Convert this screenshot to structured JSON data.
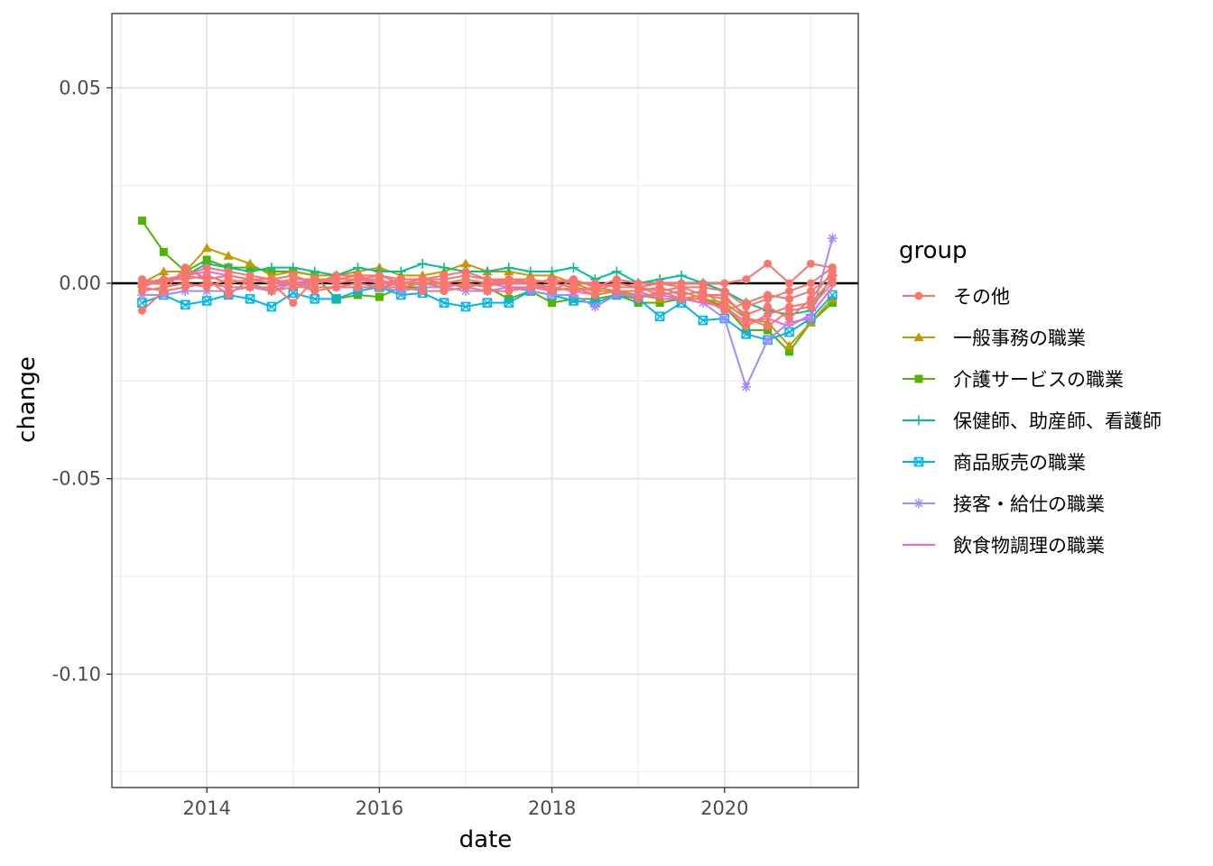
{
  "chart_data": {
    "type": "line",
    "xlabel": "date",
    "ylabel": "change",
    "xlim": [
      2012.9,
      2021.55
    ],
    "ylim": [
      -0.129,
      0.069
    ],
    "x_ticks": [
      {
        "value": 2014,
        "label": "2014"
      },
      {
        "value": 2016,
        "label": "2016"
      },
      {
        "value": 2018,
        "label": "2018"
      },
      {
        "value": 2020,
        "label": "2020"
      }
    ],
    "y_ticks": [
      {
        "value": 0.05,
        "label": "0.05"
      },
      {
        "value": 0.0,
        "label": "0.00"
      },
      {
        "value": -0.05,
        "label": "-0.05"
      },
      {
        "value": -0.1,
        "label": "-0.10"
      }
    ],
    "reference_line_y": 0,
    "grid": true,
    "legend": {
      "title": "group",
      "position": "right",
      "entries": [
        {
          "name": "その他",
          "color": "#F8766D",
          "shape": "circle"
        },
        {
          "name": "一般事務の職業",
          "color": "#C49A00",
          "shape": "triangle"
        },
        {
          "name": "介護サービスの職業",
          "color": "#53B400",
          "shape": "square"
        },
        {
          "name": "保健師、助産師、看護師",
          "color": "#00C094",
          "shape": "plus"
        },
        {
          "name": "商品販売の職業",
          "color": "#00B6EB",
          "shape": "boxcross"
        },
        {
          "name": "接客・給仕の職業",
          "color": "#A58AFF",
          "shape": "asterisk"
        },
        {
          "name": "飲食物調理の職業",
          "color": "#FB61D7",
          "shape": "none"
        }
      ]
    },
    "x": [
      2013.25,
      2013.5,
      2013.75,
      2014.0,
      2014.25,
      2014.5,
      2014.75,
      2015.0,
      2015.25,
      2015.5,
      2015.75,
      2016.0,
      2016.25,
      2016.5,
      2016.75,
      2017.0,
      2017.25,
      2017.5,
      2017.75,
      2018.0,
      2018.25,
      2018.5,
      2018.75,
      2019.0,
      2019.25,
      2019.5,
      2019.75,
      2020.0,
      2020.25,
      2020.5,
      2020.75,
      2021.0,
      2021.25
    ],
    "series": [
      {
        "name": "介護サービスの職業",
        "color": "#53B400",
        "shape": "square",
        "values": [
          0.016,
          0.008,
          0.003,
          0.006,
          0.004,
          0.004,
          0.003,
          0.003,
          0.002,
          -0.004,
          -0.003,
          -0.0035,
          -0.001,
          -0.001,
          -0.001,
          0.0,
          -0.001,
          -0.004,
          -0.002,
          -0.005,
          -0.004,
          -0.004,
          -0.003,
          -0.005,
          -0.005,
          -0.004,
          -0.004,
          -0.006,
          -0.012,
          -0.012,
          -0.0175,
          -0.01,
          -0.005
        ]
      },
      {
        "name": "一般事務の職業",
        "color": "#C49A00",
        "shape": "triangle",
        "values": [
          0.0,
          0.003,
          0.003,
          0.009,
          0.007,
          0.005,
          0.002,
          0.003,
          0.002,
          0.002,
          0.003,
          0.004,
          0.002,
          0.002,
          0.003,
          0.005,
          0.003,
          0.003,
          0.002,
          0.002,
          0.0,
          -0.002,
          -0.002,
          -0.003,
          -0.004,
          -0.004,
          -0.004,
          -0.005,
          -0.009,
          -0.01,
          -0.016,
          -0.01,
          -0.004
        ]
      },
      {
        "name": "保健師、助産師、看護師",
        "color": "#00C094",
        "shape": "plus",
        "values": [
          0.0,
          0.001,
          0.002,
          0.005,
          0.004,
          0.003,
          0.004,
          0.004,
          0.003,
          0.002,
          0.004,
          0.003,
          0.003,
          0.005,
          0.004,
          0.003,
          0.003,
          0.004,
          0.003,
          0.003,
          0.004,
          0.001,
          0.003,
          0.0,
          0.001,
          0.002,
          0.0,
          -0.002,
          -0.005,
          -0.007,
          -0.008,
          -0.007,
          0.002
        ]
      },
      {
        "name": "商品販売の職業",
        "color": "#00B6EB",
        "shape": "boxcross",
        "values": [
          -0.005,
          -0.003,
          -0.0055,
          -0.0045,
          -0.003,
          -0.004,
          -0.006,
          -0.0025,
          -0.004,
          -0.004,
          -0.002,
          -0.001,
          -0.003,
          -0.0025,
          -0.005,
          -0.006,
          -0.005,
          -0.005,
          -0.002,
          -0.003,
          -0.0045,
          -0.005,
          -0.003,
          -0.004,
          -0.0085,
          -0.005,
          -0.0095,
          -0.009,
          -0.013,
          -0.0145,
          -0.0125,
          -0.009,
          -0.003
        ]
      },
      {
        "name": "接客・給仕の職業",
        "color": "#A58AFF",
        "shape": "asterisk",
        "values": [
          -0.003,
          -0.003,
          -0.002,
          -0.002,
          -0.002,
          -0.001,
          -0.002,
          0.0,
          -0.001,
          -0.001,
          -0.001,
          -0.001,
          -0.002,
          -0.001,
          -0.001,
          -0.002,
          -0.002,
          -0.001,
          -0.002,
          -0.003,
          -0.003,
          -0.006,
          -0.003,
          -0.003,
          -0.003,
          -0.004,
          -0.005,
          -0.009,
          -0.0265,
          -0.0145,
          -0.01,
          -0.009,
          0.0115
        ]
      },
      {
        "name": "飲食物調理の職業",
        "color": "#FB61D7",
        "shape": "none",
        "values": [
          -0.001,
          0.001,
          0.002,
          0.003,
          0.002,
          0.001,
          0.0,
          0.0,
          0.001,
          0.0,
          0.001,
          0.0,
          0.0,
          0.0,
          0.0,
          -0.001,
          0.0,
          -0.001,
          -0.001,
          -0.001,
          -0.002,
          -0.003,
          -0.002,
          -0.002,
          -0.004,
          -0.004,
          -0.005,
          -0.006,
          -0.01,
          -0.009,
          -0.011,
          -0.008,
          -0.001
        ]
      },
      {
        "name": "その他",
        "color": "#F8766D",
        "shape": "circle",
        "values": [
          -0.007,
          -0.002,
          0.004,
          0.001,
          -0.003,
          0.001,
          0.0,
          -0.005,
          0.001,
          0.0,
          0.001,
          0.001,
          -0.001,
          0.0,
          -0.001,
          0.0,
          -0.001,
          0.001,
          0.0,
          -0.002,
          0.001,
          -0.001,
          0.001,
          0.0,
          0.0,
          0.0,
          0.0,
          0.0,
          0.001,
          0.005,
          0.0,
          0.005,
          0.004
        ]
      },
      {
        "name": "その他",
        "color": "#F8766D",
        "shape": "circle",
        "values": [
          0.001,
          0.0,
          0.002,
          0.004,
          0.003,
          0.002,
          0.001,
          0.002,
          0.0,
          0.002,
          0.002,
          0.002,
          0.001,
          0.001,
          0.002,
          0.003,
          0.001,
          0.0,
          0.001,
          0.0,
          -0.001,
          -0.002,
          0.0,
          -0.001,
          -0.002,
          -0.001,
          -0.003,
          -0.004,
          -0.008,
          -0.006,
          -0.009,
          -0.004,
          0.003
        ]
      },
      {
        "name": "その他",
        "color": "#F8766D",
        "shape": "circle",
        "values": [
          -0.002,
          -0.001,
          0.0,
          -0.001,
          0.001,
          0.0,
          -0.002,
          -0.001,
          -0.001,
          -0.001,
          0.0,
          -0.001,
          0.0,
          0.0,
          0.0,
          -0.001,
          0.0,
          0.0,
          0.0,
          -0.001,
          -0.002,
          -0.001,
          -0.002,
          -0.002,
          -0.001,
          -0.003,
          -0.002,
          -0.006,
          -0.011,
          -0.008,
          -0.006,
          -0.005,
          0.001
        ]
      },
      {
        "name": "その他",
        "color": "#F8766D",
        "shape": "circle",
        "values": [
          0.0,
          0.001,
          0.001,
          0.002,
          0.0,
          0.001,
          0.0,
          0.001,
          0.001,
          0.001,
          0.002,
          0.0,
          0.001,
          0.001,
          0.001,
          0.002,
          0.001,
          0.001,
          0.0,
          0.001,
          0.0,
          0.0,
          -0.001,
          -0.001,
          -0.003,
          -0.002,
          -0.004,
          -0.007,
          -0.005,
          -0.003,
          -0.004,
          -0.002,
          0.002
        ]
      },
      {
        "name": "その他",
        "color": "#F8766D",
        "shape": "circle",
        "values": [
          -0.001,
          -0.002,
          -0.001,
          0.0,
          -0.001,
          -0.001,
          -0.001,
          0.0,
          -0.002,
          -0.001,
          -0.001,
          -0.001,
          -0.001,
          -0.002,
          -0.002,
          -0.001,
          -0.002,
          -0.002,
          -0.001,
          -0.002,
          -0.001,
          -0.003,
          -0.002,
          -0.004,
          -0.002,
          -0.004,
          -0.003,
          -0.003,
          -0.009,
          -0.011,
          -0.007,
          -0.006,
          0.0
        ]
      },
      {
        "name": "その他",
        "color": "#F8766D",
        "shape": "circle",
        "values": [
          0.0,
          0.0,
          0.002,
          0.001,
          0.002,
          0.001,
          0.001,
          0.0,
          0.0,
          0.001,
          0.001,
          0.002,
          0.0,
          0.001,
          0.0,
          0.001,
          0.0,
          0.001,
          0.001,
          0.0,
          0.001,
          -0.001,
          0.0,
          -0.001,
          0.0,
          -0.001,
          -0.001,
          -0.002,
          -0.006,
          -0.004,
          -0.002,
          0.0,
          0.004
        ]
      }
    ]
  }
}
